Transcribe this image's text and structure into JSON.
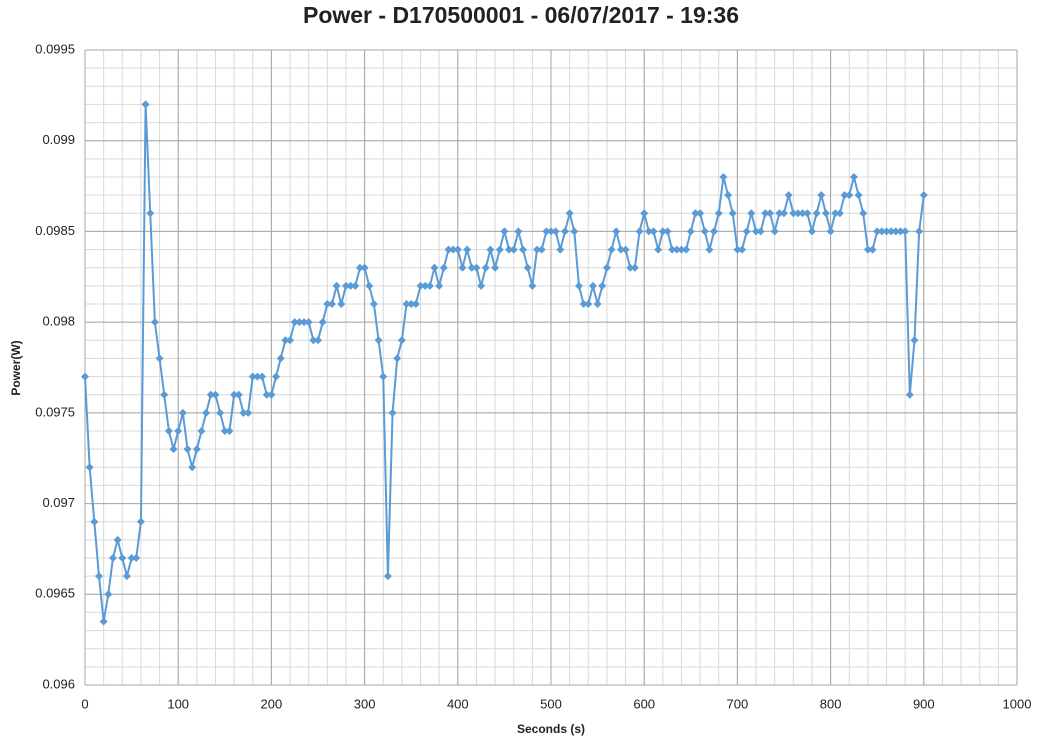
{
  "chart_data": {
    "type": "line",
    "title": "Power - D170500001 - 06/07/2017 - 19:36",
    "x_label": "Seconds (s)",
    "y_label": "Power(W)",
    "x": [
      0,
      5,
      10,
      15,
      20,
      25,
      30,
      35,
      40,
      45,
      50,
      55,
      60,
      65,
      70,
      75,
      80,
      85,
      90,
      95,
      100,
      105,
      110,
      115,
      120,
      125,
      130,
      135,
      140,
      145,
      150,
      155,
      160,
      165,
      170,
      175,
      180,
      185,
      190,
      195,
      200,
      205,
      210,
      215,
      220,
      225,
      230,
      235,
      240,
      245,
      250,
      255,
      260,
      265,
      270,
      275,
      280,
      285,
      290,
      295,
      300,
      305,
      310,
      315,
      320,
      325,
      330,
      335,
      340,
      345,
      350,
      355,
      360,
      365,
      370,
      375,
      380,
      385,
      390,
      395,
      400,
      405,
      410,
      415,
      420,
      425,
      430,
      435,
      440,
      445,
      450,
      455,
      460,
      465,
      470,
      475,
      480,
      485,
      490,
      495,
      500,
      505,
      510,
      515,
      520,
      525,
      530,
      535,
      540,
      545,
      550,
      555,
      560,
      565,
      570,
      575,
      580,
      585,
      590,
      595,
      600,
      605,
      610,
      615,
      620,
      625,
      630,
      635,
      640,
      645,
      650,
      655,
      660,
      665,
      670,
      675,
      680,
      685,
      690,
      695,
      700,
      705,
      710,
      715,
      720,
      725,
      730,
      735,
      740,
      745,
      750,
      755,
      760,
      765,
      770,
      775,
      780,
      785,
      790,
      795,
      800,
      805,
      810,
      815,
      820,
      825,
      830,
      835,
      840,
      845,
      850,
      855,
      860,
      865,
      870,
      875,
      880,
      885,
      890,
      895,
      900
    ],
    "series": [
      {
        "name": "Power",
        "color": "#5b9bd5",
        "values": [
          0.0977,
          0.0972,
          0.0969,
          0.0966,
          0.09635,
          0.0965,
          0.0967,
          0.0968,
          0.0967,
          0.0966,
          0.0967,
          0.0967,
          0.0969,
          0.0992,
          0.0986,
          0.098,
          0.0978,
          0.0976,
          0.0974,
          0.0973,
          0.0974,
          0.0975,
          0.0973,
          0.0972,
          0.0973,
          0.0974,
          0.0975,
          0.0976,
          0.0976,
          0.0975,
          0.0974,
          0.0974,
          0.0976,
          0.0976,
          0.0975,
          0.0975,
          0.0977,
          0.0977,
          0.0977,
          0.0976,
          0.0976,
          0.0977,
          0.0978,
          0.0979,
          0.0979,
          0.098,
          0.098,
          0.098,
          0.098,
          0.0979,
          0.0979,
          0.098,
          0.0981,
          0.0981,
          0.0982,
          0.0981,
          0.0982,
          0.0982,
          0.0982,
          0.0983,
          0.0983,
          0.0982,
          0.0981,
          0.0979,
          0.0977,
          0.0966,
          0.0975,
          0.0978,
          0.0979,
          0.0981,
          0.0981,
          0.0981,
          0.0982,
          0.0982,
          0.0982,
          0.0983,
          0.0982,
          0.0983,
          0.0984,
          0.0984,
          0.0984,
          0.0983,
          0.0984,
          0.0983,
          0.0983,
          0.0982,
          0.0983,
          0.0984,
          0.0983,
          0.0984,
          0.0985,
          0.0984,
          0.0984,
          0.0985,
          0.0984,
          0.0983,
          0.0982,
          0.0984,
          0.0984,
          0.0985,
          0.0985,
          0.0985,
          0.0984,
          0.0985,
          0.0986,
          0.0985,
          0.0982,
          0.0981,
          0.0981,
          0.0982,
          0.0981,
          0.0982,
          0.0983,
          0.0984,
          0.0985,
          0.0984,
          0.0984,
          0.0983,
          0.0983,
          0.0985,
          0.0986,
          0.0985,
          0.0985,
          0.0984,
          0.0985,
          0.0985,
          0.0984,
          0.0984,
          0.0984,
          0.0984,
          0.0985,
          0.0986,
          0.0986,
          0.0985,
          0.0984,
          0.0985,
          0.0986,
          0.0988,
          0.0987,
          0.0986,
          0.0984,
          0.0984,
          0.0985,
          0.0986,
          0.0985,
          0.0985,
          0.0986,
          0.0986,
          0.0985,
          0.0986,
          0.0986,
          0.0987,
          0.0986,
          0.0986,
          0.0986,
          0.0986,
          0.0985,
          0.0986,
          0.0987,
          0.0986,
          0.0985,
          0.0986,
          0.0986,
          0.0987,
          0.0987,
          0.0988,
          0.0987,
          0.0986,
          0.0984,
          0.0984,
          0.0985,
          0.0985,
          0.0985,
          0.0985,
          0.0985,
          0.0985,
          0.0985,
          0.0976,
          0.0979,
          0.0985,
          0.0987
        ]
      }
    ],
    "xlim": [
      0,
      1000
    ],
    "xticks": [
      0,
      100,
      200,
      300,
      400,
      500,
      600,
      700,
      800,
      900,
      1000
    ],
    "ylim": [
      0.096,
      0.0995
    ],
    "yticks": [
      0.096,
      0.0965,
      0.097,
      0.0975,
      0.098,
      0.0985,
      0.099,
      0.0995
    ],
    "grid": true,
    "minor_grid": {
      "x": 20,
      "y": 0.0001
    }
  }
}
